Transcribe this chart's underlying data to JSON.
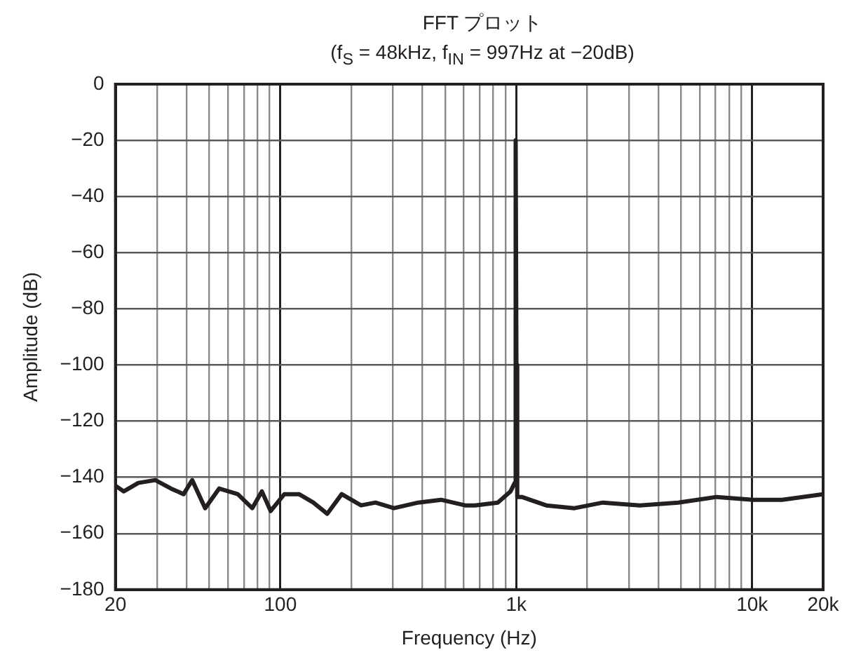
{
  "chart_data": {
    "type": "line",
    "title": "FFT プロット",
    "subtitle": "(f$_{S}$ = 48kHz, f$_{IN}$ = 997Hz at −20dB)",
    "xlabel": "Frequency (Hz)",
    "ylabel": "Amplitude (dB)",
    "log": "x",
    "grid": true,
    "legend": false,
    "marker": "none",
    "line_style": "solid",
    "xlim": [
      20,
      20000
    ],
    "xticks": [
      {
        "value": 20,
        "label": "20"
      },
      {
        "value": 30,
        "label": null
      },
      {
        "value": 40,
        "label": null
      },
      {
        "value": 50,
        "label": null
      },
      {
        "value": 60,
        "label": null
      },
      {
        "value": 70,
        "label": null
      },
      {
        "value": 80,
        "label": null
      },
      {
        "value": 90,
        "label": null
      },
      {
        "value": 100,
        "label": "100"
      },
      {
        "value": 200,
        "label": null
      },
      {
        "value": 300,
        "label": null
      },
      {
        "value": 400,
        "label": null
      },
      {
        "value": 500,
        "label": null
      },
      {
        "value": 600,
        "label": null
      },
      {
        "value": 700,
        "label": null
      },
      {
        "value": 800,
        "label": null
      },
      {
        "value": 900,
        "label": null
      },
      {
        "value": 1000,
        "label": "1k"
      },
      {
        "value": 2000,
        "label": null
      },
      {
        "value": 3000,
        "label": null
      },
      {
        "value": 4000,
        "label": null
      },
      {
        "value": 5000,
        "label": null
      },
      {
        "value": 6000,
        "label": null
      },
      {
        "value": 7000,
        "label": null
      },
      {
        "value": 8000,
        "label": null
      },
      {
        "value": 9000,
        "label": null
      },
      {
        "value": 10000,
        "label": "10k"
      },
      {
        "value": 20000,
        "label": "20k"
      }
    ],
    "ylim": [
      -180,
      0
    ],
    "yticks": [
      {
        "value": -180,
        "label": "−180"
      },
      {
        "value": -160,
        "label": "−160"
      },
      {
        "value": -140,
        "label": "−140"
      },
      {
        "value": -120,
        "label": "−120"
      },
      {
        "value": -100,
        "label": "−100"
      },
      {
        "value": -80,
        "label": "−80"
      },
      {
        "value": -60,
        "label": "−60"
      },
      {
        "value": -40,
        "label": "−40"
      },
      {
        "value": -20,
        "label": "−20"
      },
      0
    ],
    "series": [
      {
        "color": "#231f20",
        "x": [
          20,
          21.7,
          25,
          29.5,
          34.4,
          38.9,
          42.3,
          48,
          55,
          66,
          76,
          83.5,
          91,
          104,
          120,
          138,
          158,
          182,
          220,
          253,
          303,
          384,
          480,
          607,
          668,
          835,
          946,
          985,
          992,
          997,
          1002,
          1010,
          1057,
          1340,
          1766,
          2330,
          3340,
          4860,
          7070,
          10100,
          13400,
          20000
        ],
        "values": [
          -143,
          -145,
          -142,
          -141,
          -144,
          -146,
          -141,
          -151,
          -144,
          -146,
          -151,
          -145,
          -152,
          -146,
          -146,
          -149,
          -153,
          -146,
          -150,
          -149,
          -151,
          -149,
          -148,
          -150,
          -150,
          -149,
          -145,
          -142,
          -100,
          -20,
          -100,
          -147,
          -147,
          -150,
          -151,
          -149,
          -150,
          -149,
          -147,
          -148,
          -148,
          -146
        ]
      }
    ]
  }
}
